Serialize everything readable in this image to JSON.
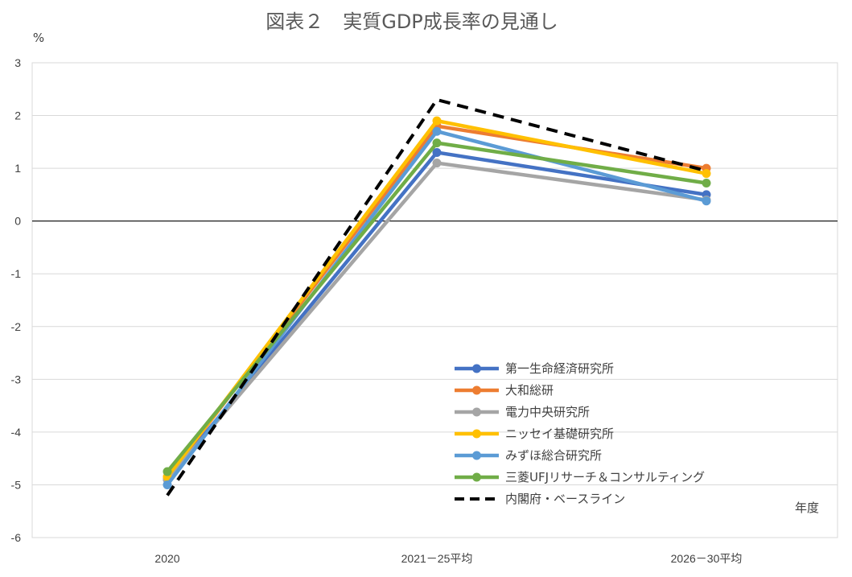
{
  "chart_data": {
    "type": "line",
    "title": "図表２　実質GDP成長率の見通し",
    "ylabel": "%",
    "xlabel": "年度",
    "categories": [
      "2020",
      "2021－25平均",
      "2026－30平均"
    ],
    "ylim": [
      -6,
      3
    ],
    "yticks": [
      3,
      2,
      1,
      0,
      -1,
      -2,
      -3,
      -4,
      -5,
      -6
    ],
    "grid": true,
    "legend_position": "bottom-right",
    "series": [
      {
        "name": "第一生命経済研究所",
        "values": [
          -4.9,
          1.3,
          0.5
        ],
        "color": "#4472c4",
        "dashed": false
      },
      {
        "name": "大和総研",
        "values": [
          -4.85,
          1.8,
          1.0
        ],
        "color": "#ed7d31",
        "dashed": false
      },
      {
        "name": "電力中央研究所",
        "values": [
          -4.9,
          1.1,
          0.4
        ],
        "color": "#a5a5a5",
        "dashed": false
      },
      {
        "name": "ニッセイ基礎研究所",
        "values": [
          -4.85,
          1.9,
          0.9
        ],
        "color": "#ffc000",
        "dashed": false
      },
      {
        "name": "みずほ総合研究所",
        "values": [
          -5.0,
          1.7,
          0.38
        ],
        "color": "#5b9bd5",
        "dashed": false
      },
      {
        "name": "三菱UFJリサーチ＆コンサルティング",
        "values": [
          -4.75,
          1.48,
          0.72
        ],
        "color": "#70ad47",
        "dashed": false
      },
      {
        "name": "内閣府・ベースライン",
        "values": [
          -5.2,
          2.3,
          0.95
        ],
        "color": "#000000",
        "dashed": true
      }
    ]
  }
}
